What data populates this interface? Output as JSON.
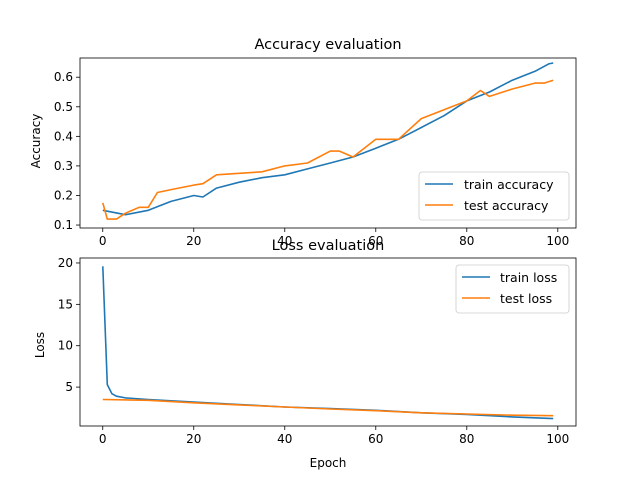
{
  "chart_data": [
    {
      "type": "line",
      "title": "Accuracy evaluation",
      "xlabel": "",
      "ylabel": "Accuracy",
      "xlim": [
        -5,
        104
      ],
      "ylim": [
        0.09,
        0.665
      ],
      "xticks": [
        "0",
        "20",
        "40",
        "60",
        "80",
        "100"
      ],
      "xtick_values": [
        0,
        20,
        40,
        60,
        80,
        100
      ],
      "yticks": [
        "0.1",
        "0.2",
        "0.3",
        "0.4",
        "0.5",
        "0.6"
      ],
      "ytick_values": [
        0.1,
        0.2,
        0.3,
        0.4,
        0.5,
        0.6
      ],
      "legend": "lower-right",
      "grid": false,
      "series": [
        {
          "name": "train accuracy",
          "color": "#1f77b4",
          "x": [
            0,
            5,
            10,
            15,
            20,
            22,
            25,
            30,
            35,
            40,
            45,
            50,
            55,
            60,
            65,
            70,
            75,
            80,
            85,
            90,
            95,
            98,
            99
          ],
          "y": [
            0.15,
            0.135,
            0.15,
            0.18,
            0.2,
            0.195,
            0.225,
            0.245,
            0.26,
            0.27,
            0.29,
            0.31,
            0.33,
            0.36,
            0.39,
            0.43,
            0.47,
            0.52,
            0.55,
            0.59,
            0.62,
            0.645,
            0.648
          ]
        },
        {
          "name": "test accuracy",
          "color": "#ff7f0e",
          "x": [
            0,
            1,
            3,
            5,
            8,
            10,
            12,
            15,
            20,
            22,
            25,
            30,
            35,
            40,
            45,
            50,
            52,
            55,
            60,
            65,
            70,
            75,
            80,
            83,
            85,
            90,
            95,
            97,
            99
          ],
          "y": [
            0.175,
            0.12,
            0.12,
            0.14,
            0.16,
            0.16,
            0.21,
            0.22,
            0.235,
            0.24,
            0.27,
            0.275,
            0.28,
            0.3,
            0.31,
            0.35,
            0.35,
            0.33,
            0.39,
            0.39,
            0.46,
            0.49,
            0.52,
            0.555,
            0.535,
            0.56,
            0.58,
            0.58,
            0.59
          ]
        }
      ]
    },
    {
      "type": "line",
      "title": "Loss evaluation",
      "xlabel": "Epoch",
      "ylabel": "Loss",
      "xlim": [
        -5,
        104
      ],
      "ylim": [
        0.3,
        20.6
      ],
      "xticks": [
        "0",
        "20",
        "40",
        "60",
        "80",
        "100"
      ],
      "xtick_values": [
        0,
        20,
        40,
        60,
        80,
        100
      ],
      "yticks": [
        "5",
        "10",
        "15",
        "20"
      ],
      "ytick_values": [
        5,
        10,
        15,
        20
      ],
      "legend": "upper-right",
      "grid": false,
      "series": [
        {
          "name": "train loss",
          "color": "#1f77b4",
          "x": [
            0,
            1,
            2,
            3,
            5,
            10,
            20,
            30,
            40,
            50,
            60,
            70,
            80,
            90,
            99
          ],
          "y": [
            19.6,
            5.3,
            4.2,
            3.9,
            3.7,
            3.5,
            3.2,
            2.9,
            2.6,
            2.4,
            2.2,
            1.9,
            1.7,
            1.4,
            1.2
          ]
        },
        {
          "name": "test loss",
          "color": "#ff7f0e",
          "x": [
            0,
            10,
            20,
            30,
            40,
            50,
            60,
            70,
            80,
            90,
            99
          ],
          "y": [
            3.5,
            3.4,
            3.1,
            2.85,
            2.6,
            2.35,
            2.15,
            1.9,
            1.75,
            1.6,
            1.55
          ]
        }
      ]
    }
  ]
}
